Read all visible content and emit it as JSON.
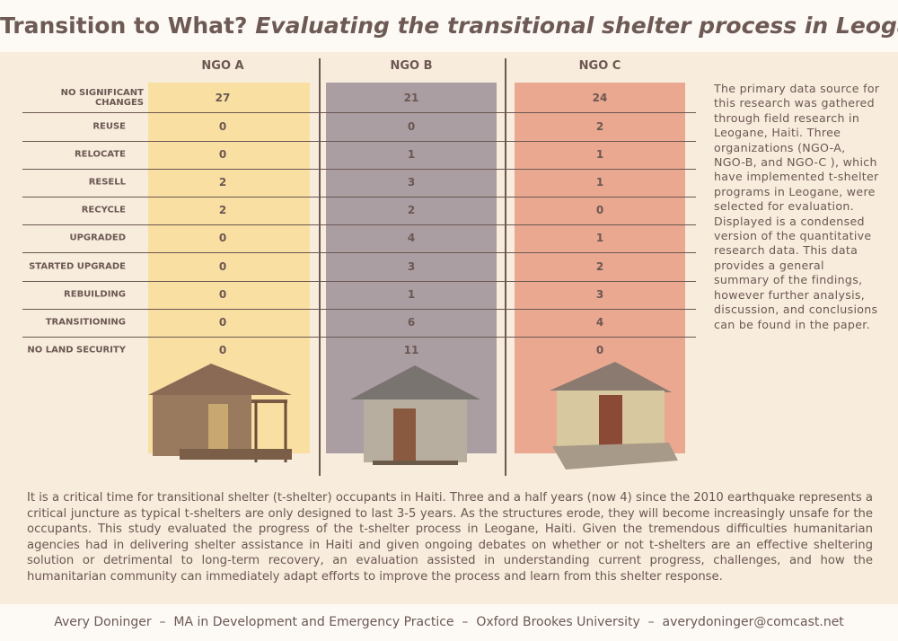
{
  "title": {
    "lead": "Transition to What?",
    "rest": "Evaluating the transitional shelter process in Leogane, Haiti"
  },
  "table": {
    "columns": [
      "NGO A",
      "NGO B",
      "NGO C"
    ],
    "rows": [
      {
        "label": "NO SIGNIFICANT CHANGES",
        "values": [
          27,
          21,
          24
        ]
      },
      {
        "label": "REUSE",
        "values": [
          0,
          0,
          2
        ]
      },
      {
        "label": "RELOCATE",
        "values": [
          0,
          1,
          1
        ]
      },
      {
        "label": "RESELL",
        "values": [
          2,
          3,
          1
        ]
      },
      {
        "label": "RECYCLE",
        "values": [
          2,
          2,
          0
        ]
      },
      {
        "label": "UPGRADED",
        "values": [
          0,
          4,
          1
        ]
      },
      {
        "label": "STARTED UPGRADE",
        "values": [
          0,
          3,
          2
        ]
      },
      {
        "label": "REBUILDING",
        "values": [
          0,
          1,
          3
        ]
      },
      {
        "label": "TRANSITIONING",
        "values": [
          0,
          6,
          4
        ]
      },
      {
        "label": "NO LAND SECURITY",
        "values": [
          0,
          11,
          0
        ]
      }
    ]
  },
  "sidebar": "The primary data source for this research was gathered through field research in Leogane, Haiti. Three organizations (NGO-A, NGO-B, and NGO-C ), which have implemented t-shelter programs in Leogane, were selected for evaluation. Displayed is a condensed version of the quantitative research data. This data provides a general summary of the findings, however further analysis, discussion, and conclusions can be found in the paper.",
  "abstract": "It is a critical time for transitional shelter (t-shelter) occupants in Haiti. Three and a half years (now 4) since the 2010 earthquake represents a critical juncture as typical t-shelters are only designed to last 3-5 years. As the structures erode, they will become increasingly unsafe for the occupants. This study evaluated the progress of the t-shelter process in Leogane, Haiti. Given the tremendous difficulties humanitarian agencies had in delivering shelter assistance in Haiti and given ongoing debates on whether or not t-shelters are an effective sheltering solution or detrimental to long-term recovery, an evaluation assisted in understanding current progress, challenges, and how the humanitarian community can immediately adapt efforts to improve the process and learn from this shelter response.",
  "footer": "Avery Doninger  –  MA in Development and Emergency Practice  –  Oxford Brookes University  –  averydoninger@comcast.net"
}
